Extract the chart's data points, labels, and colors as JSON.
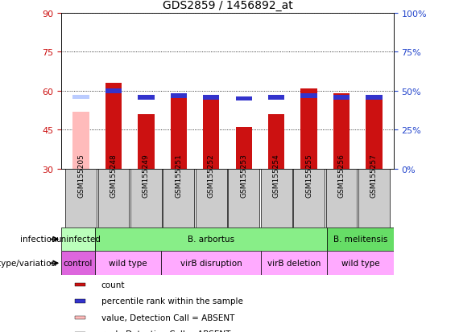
{
  "title": "GDS2859 / 1456892_at",
  "samples": [
    "GSM155205",
    "GSM155248",
    "GSM155249",
    "GSM155251",
    "GSM155252",
    "GSM155253",
    "GSM155254",
    "GSM155255",
    "GSM155256",
    "GSM155257"
  ],
  "count_values": [
    null,
    63,
    51,
    58,
    58,
    46,
    51,
    61,
    59,
    57
  ],
  "count_absent": [
    52,
    null,
    null,
    null,
    null,
    null,
    null,
    null,
    null,
    null
  ],
  "percentile_values": [
    null,
    50,
    46,
    47,
    46,
    45,
    46,
    47,
    46,
    46
  ],
  "percentile_absent": [
    46,
    null,
    null,
    null,
    null,
    null,
    null,
    null,
    null,
    null
  ],
  "ylim_left": [
    30,
    90
  ],
  "ylim_right": [
    0,
    100
  ],
  "yticks_left": [
    30,
    45,
    60,
    75,
    90
  ],
  "yticks_right": [
    0,
    25,
    50,
    75,
    100
  ],
  "bar_bottom": 30,
  "bar_width": 0.5,
  "bar_color_count": "#cc1111",
  "bar_color_percentile": "#3333cc",
  "bar_color_absent_count": "#ffbbbb",
  "bar_color_absent_percentile": "#bbccff",
  "infection_row": [
    {
      "label": "uninfected",
      "start": 0,
      "end": 1,
      "color": "#bbffbb"
    },
    {
      "label": "B. arbortus",
      "start": 1,
      "end": 8,
      "color": "#88ee88"
    },
    {
      "label": "B. melitensis",
      "start": 8,
      "end": 10,
      "color": "#66dd66"
    }
  ],
  "genotype_row": [
    {
      "label": "control",
      "start": 0,
      "end": 1,
      "color": "#dd66dd"
    },
    {
      "label": "wild type",
      "start": 1,
      "end": 3,
      "color": "#ffaaff"
    },
    {
      "label": "virB disruption",
      "start": 3,
      "end": 6,
      "color": "#ffaaff"
    },
    {
      "label": "virB deletion",
      "start": 6,
      "end": 8,
      "color": "#ffaaff"
    },
    {
      "label": "wild type",
      "start": 8,
      "end": 10,
      "color": "#ffaaff"
    }
  ],
  "legend_items": [
    {
      "label": "count",
      "color": "#cc1111"
    },
    {
      "label": "percentile rank within the sample",
      "color": "#3333cc"
    },
    {
      "label": "value, Detection Call = ABSENT",
      "color": "#ffbbbb"
    },
    {
      "label": "rank, Detection Call = ABSENT",
      "color": "#bbccff"
    }
  ],
  "background_color": "#ffffff",
  "tick_color_left": "#cc1111",
  "tick_color_right": "#2244cc",
  "sample_box_color": "#cccccc",
  "infection_label": "infection",
  "genotype_label": "genotype/variation"
}
